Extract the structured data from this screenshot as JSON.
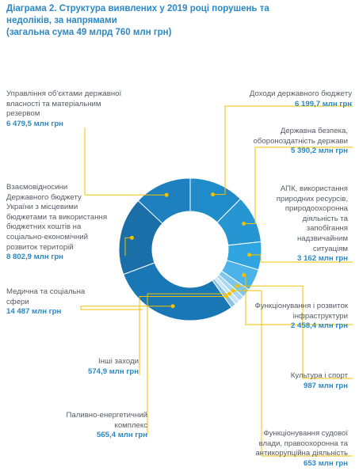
{
  "title": {
    "line1": "Діаграма 2. Структура виявлених у 2019 році порушень та",
    "line2": "недоліків, за напрямами",
    "line3": "(загальна сума 49 млрд 760 млн грн)"
  },
  "chart_data": {
    "type": "pie",
    "variant": "donut",
    "title": "Діаграма 2. Структура виявлених у 2019 році порушень та недоліків, за напрямами (загальна сума 49 млрд 760 млн грн)",
    "unit": "млн грн",
    "slices": [
      {
        "label": "Доходи державного бюджету",
        "value": 6199.7,
        "value_text": "6 199,7 млн грн",
        "color": "#1f8bc8"
      },
      {
        "label": "Державна безпека, обороноздатність держави",
        "value": 5390.2,
        "value_text": "5 390,2 млн грн",
        "color": "#2696d3"
      },
      {
        "label": "АПК, використання природних ресурсів, природоохоронна діяльність та запобігання надзвичайним ситуаціям",
        "value": 3162,
        "value_text": "3 162 млн грн",
        "color": "#2fa4e1"
      },
      {
        "label": "Функціонування і розвиток інфраструктури",
        "value": 2458.4,
        "value_text": "2 458,4 млн грн",
        "color": "#4cb3e8"
      },
      {
        "label": "Культура і спорт",
        "value": 987,
        "value_text": "987 млн грн",
        "color": "#7dc6ee"
      },
      {
        "label": "Функціонування судової влади, правоохоронна та антикорупційна діяльність",
        "value": 653,
        "value_text": "653 млн грн",
        "color": "#a9d8f2"
      },
      {
        "label": "Паливно-енергетичний комплекс",
        "value": 565.4,
        "value_text": "565,4 млн грн",
        "color": "#c7e5f6"
      },
      {
        "label": "Інші заходи",
        "value": 574.9,
        "value_text": "574,9 млн грн",
        "color": "#8cc3e2"
      },
      {
        "label": "Медична та соціальна сфери",
        "value": 14487,
        "value_text": "14 487 млн грн",
        "color": "#1a77b5"
      },
      {
        "label": "Взаємовідносини Державного бюджету України з місцевими бюджетами та використання бюджетних коштів на соціально-економічний розвиток територій",
        "value": 8802.9,
        "value_text": "8 802,9 млн грн",
        "color": "#1b6fa8"
      },
      {
        "label": "Управління об'єктами державної власності та матеріальним резервом",
        "value": 6479.5,
        "value_text": "6 479,5 млн грн",
        "color": "#1e80be"
      }
    ]
  },
  "labels": [
    {
      "text": "Доходи державного бюджету",
      "value": "6 199,7 млн грн"
    },
    {
      "text": "Державна безпека,\nобороноздатність держави",
      "value": "5 390,2 млн грн"
    },
    {
      "text": "АПК, використання\nприродних ресурсів,\nприродоохоронна\nдіяльність та\nзапобігання\nнадзвичайним\nситуаціям",
      "value": "3 162 млн грн"
    },
    {
      "text": "Функціонування і розвиток\nінфраструктури",
      "value": "2 458,4 млн грн"
    },
    {
      "text": "Культура і спорт",
      "value": "987 млн грн"
    },
    {
      "text": "Функціонування судової\nвлади, правоохоронна та\nантикорупційна діяльність",
      "value": "653 млн грн"
    },
    {
      "text": "Паливно-енергетичний\nкомплекс",
      "value": "565,4 млн грн"
    },
    {
      "text": "Інші заходи",
      "value": "574,9 млн грн"
    },
    {
      "text": "Медична та соціальна\nсфери",
      "value": "14 487 млн грн"
    },
    {
      "text": "Взаємовідносини\nДержавного бюджету\nУкраїни з місцевими\nбюджетами та використання\nбюджетних коштів на\nсоціально-економічний\nрозвиток територій",
      "value": "8 802,9 млн грн"
    },
    {
      "text": "Управління об'єктами державної\nвласності та матеріальним\nрезервом",
      "value": "6 479,5 млн грн"
    }
  ],
  "colors": {
    "accent": "#2b88c4",
    "leader": "#f2c200",
    "text": "#555b63"
  }
}
